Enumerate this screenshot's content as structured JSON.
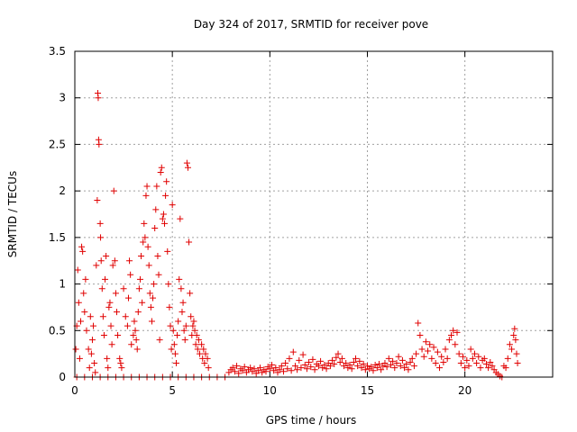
{
  "chart_data": {
    "type": "scatter",
    "title": "Day 324 of 2017, SRMTID for receiver pove",
    "xlabel": "GPS time / hours",
    "ylabel": "SRMTID / TECUs",
    "xlim": [
      0,
      24.5
    ],
    "ylim": [
      0,
      3.5
    ],
    "x_ticks": [
      0,
      5,
      10,
      15,
      20
    ],
    "y_ticks": [
      0,
      0.5,
      1,
      1.5,
      2,
      2.5,
      3,
      3.5
    ],
    "x_tick_labels": [
      "0",
      "5",
      "10",
      "15",
      "20"
    ],
    "y_tick_labels": [
      "0",
      "0.5",
      "1",
      "1.5",
      "2",
      "2.5",
      "3",
      "3.5"
    ],
    "grid": true,
    "marker": "+",
    "series": [
      {
        "name": "SRMTID",
        "color": "#e00000",
        "points": [
          [
            0.05,
            0.3
          ],
          [
            0.1,
            0.55
          ],
          [
            0.15,
            1.15
          ],
          [
            0.2,
            0.8
          ],
          [
            0.25,
            0.2
          ],
          [
            0.3,
            0.6
          ],
          [
            0.35,
            1.4
          ],
          [
            0.4,
            1.35
          ],
          [
            0.45,
            0.9
          ],
          [
            0.5,
            0.7
          ],
          [
            0.55,
            1.05
          ],
          [
            0.6,
            0.5
          ],
          [
            0.7,
            0.3
          ],
          [
            0.75,
            0.1
          ],
          [
            0.8,
            0.65
          ],
          [
            0.85,
            0.25
          ],
          [
            0.9,
            0.4
          ],
          [
            0.95,
            0.55
          ],
          [
            1.0,
            0.15
          ],
          [
            1.05,
            0.05
          ],
          [
            1.1,
            1.2
          ],
          [
            1.15,
            1.9
          ],
          [
            1.18,
            3.05
          ],
          [
            1.2,
            3.0
          ],
          [
            1.22,
            2.55
          ],
          [
            1.24,
            2.5
          ],
          [
            1.3,
            1.65
          ],
          [
            1.32,
            1.5
          ],
          [
            1.35,
            1.25
          ],
          [
            1.4,
            0.95
          ],
          [
            1.45,
            0.65
          ],
          [
            1.5,
            0.45
          ],
          [
            1.55,
            1.05
          ],
          [
            1.6,
            1.3
          ],
          [
            1.65,
            0.2
          ],
          [
            1.7,
            0.1
          ],
          [
            1.75,
            0.75
          ],
          [
            1.8,
            0.8
          ],
          [
            1.85,
            0.55
          ],
          [
            1.9,
            0.35
          ],
          [
            1.95,
            1.2
          ],
          [
            2.0,
            2.0
          ],
          [
            2.05,
            1.25
          ],
          [
            2.1,
            0.9
          ],
          [
            2.15,
            0.7
          ],
          [
            2.2,
            0.45
          ],
          [
            2.3,
            0.2
          ],
          [
            2.35,
            0.15
          ],
          [
            2.4,
            0.1
          ],
          [
            2.5,
            0.95
          ],
          [
            2.6,
            0.65
          ],
          [
            2.7,
            0.55
          ],
          [
            2.75,
            0.85
          ],
          [
            2.8,
            1.25
          ],
          [
            2.85,
            1.1
          ],
          [
            2.9,
            0.35
          ],
          [
            3.0,
            0.45
          ],
          [
            3.05,
            0.6
          ],
          [
            3.1,
            0.5
          ],
          [
            3.15,
            0.4
          ],
          [
            3.2,
            0.3
          ],
          [
            3.25,
            0.7
          ],
          [
            3.3,
            0.95
          ],
          [
            3.35,
            1.05
          ],
          [
            3.4,
            1.3
          ],
          [
            3.45,
            0.8
          ],
          [
            3.5,
            1.45
          ],
          [
            3.55,
            1.65
          ],
          [
            3.6,
            1.5
          ],
          [
            3.65,
            1.95
          ],
          [
            3.7,
            2.05
          ],
          [
            3.75,
            1.4
          ],
          [
            3.8,
            1.2
          ],
          [
            3.85,
            0.9
          ],
          [
            3.9,
            0.75
          ],
          [
            3.95,
            0.6
          ],
          [
            4.0,
            0.85
          ],
          [
            4.05,
            1.0
          ],
          [
            4.1,
            1.6
          ],
          [
            4.15,
            1.8
          ],
          [
            4.2,
            2.05
          ],
          [
            4.25,
            1.3
          ],
          [
            4.3,
            1.1
          ],
          [
            4.35,
            0.4
          ],
          [
            4.4,
            2.2
          ],
          [
            4.45,
            2.25
          ],
          [
            4.5,
            1.7
          ],
          [
            4.55,
            1.75
          ],
          [
            4.6,
            1.65
          ],
          [
            4.65,
            1.95
          ],
          [
            4.7,
            2.1
          ],
          [
            4.75,
            1.35
          ],
          [
            4.8,
            1.0
          ],
          [
            4.85,
            0.75
          ],
          [
            4.9,
            0.55
          ],
          [
            4.95,
            0.3
          ],
          [
            5.0,
            1.85
          ],
          [
            5.05,
            0.5
          ],
          [
            5.1,
            0.35
          ],
          [
            5.15,
            0.25
          ],
          [
            5.2,
            0.15
          ],
          [
            5.25,
            0.45
          ],
          [
            5.3,
            0.6
          ],
          [
            5.35,
            1.05
          ],
          [
            5.4,
            1.7
          ],
          [
            5.45,
            0.95
          ],
          [
            5.5,
            0.7
          ],
          [
            5.55,
            0.8
          ],
          [
            5.6,
            0.5
          ],
          [
            5.65,
            0.4
          ],
          [
            5.7,
            0.55
          ],
          [
            5.75,
            2.3
          ],
          [
            5.8,
            2.25
          ],
          [
            5.85,
            1.45
          ],
          [
            5.9,
            0.9
          ],
          [
            5.95,
            0.65
          ],
          [
            6.0,
            0.45
          ],
          [
            6.05,
            0.55
          ],
          [
            6.1,
            0.6
          ],
          [
            6.15,
            0.5
          ],
          [
            6.2,
            0.35
          ],
          [
            6.25,
            0.45
          ],
          [
            6.3,
            0.3
          ],
          [
            6.35,
            0.4
          ],
          [
            6.4,
            0.25
          ],
          [
            6.5,
            0.35
          ],
          [
            6.55,
            0.2
          ],
          [
            6.6,
            0.3
          ],
          [
            6.65,
            0.15
          ],
          [
            6.7,
            0.25
          ],
          [
            6.8,
            0.2
          ],
          [
            6.85,
            0.1
          ],
          [
            0.1,
            0
          ],
          [
            0.5,
            0
          ],
          [
            0.9,
            0
          ],
          [
            1.3,
            0
          ],
          [
            1.7,
            0
          ],
          [
            2.1,
            0
          ],
          [
            2.5,
            0
          ],
          [
            2.9,
            0
          ],
          [
            3.3,
            0
          ],
          [
            3.7,
            0
          ],
          [
            4.1,
            0
          ],
          [
            4.5,
            0
          ],
          [
            4.9,
            0
          ],
          [
            5.3,
            0
          ],
          [
            5.7,
            0
          ],
          [
            6.1,
            0
          ],
          [
            6.5,
            0
          ],
          [
            6.9,
            0
          ],
          [
            7.3,
            0
          ],
          [
            7.7,
            0
          ],
          [
            7.9,
            0.05
          ],
          [
            8.0,
            0.08
          ],
          [
            8.1,
            0.1
          ],
          [
            8.2,
            0.06
          ],
          [
            8.3,
            0.12
          ],
          [
            8.4,
            0.04
          ],
          [
            8.5,
            0.09
          ],
          [
            8.6,
            0.07
          ],
          [
            8.7,
            0.11
          ],
          [
            8.8,
            0.05
          ],
          [
            8.9,
            0.08
          ],
          [
            9.0,
            0.1
          ],
          [
            9.1,
            0.06
          ],
          [
            9.2,
            0.09
          ],
          [
            9.3,
            0.04
          ],
          [
            9.4,
            0.07
          ],
          [
            9.5,
            0.1
          ],
          [
            9.6,
            0.05
          ],
          [
            9.7,
            0.08
          ],
          [
            9.8,
            0.06
          ],
          [
            9.9,
            0.11
          ],
          [
            10.0,
            0.09
          ],
          [
            10.1,
            0.13
          ],
          [
            10.2,
            0.07
          ],
          [
            10.3,
            0.1
          ],
          [
            10.4,
            0.05
          ],
          [
            10.5,
            0.08
          ],
          [
            10.6,
            0.12
          ],
          [
            10.7,
            0.06
          ],
          [
            10.8,
            0.15
          ],
          [
            10.9,
            0.09
          ],
          [
            11.0,
            0.2
          ],
          [
            11.1,
            0.07
          ],
          [
            11.2,
            0.27
          ],
          [
            11.3,
            0.12
          ],
          [
            11.4,
            0.08
          ],
          [
            11.5,
            0.18
          ],
          [
            11.6,
            0.1
          ],
          [
            11.7,
            0.24
          ],
          [
            11.8,
            0.13
          ],
          [
            11.9,
            0.09
          ],
          [
            12.0,
            0.16
          ],
          [
            12.1,
            0.11
          ],
          [
            12.2,
            0.19
          ],
          [
            12.3,
            0.08
          ],
          [
            12.4,
            0.14
          ],
          [
            12.5,
            0.12
          ],
          [
            12.6,
            0.17
          ],
          [
            12.7,
            0.1
          ],
          [
            12.8,
            0.13
          ],
          [
            12.9,
            0.09
          ],
          [
            13.0,
            0.15
          ],
          [
            13.1,
            0.12
          ],
          [
            13.2,
            0.18
          ],
          [
            13.3,
            0.14
          ],
          [
            13.4,
            0.21
          ],
          [
            13.5,
            0.25
          ],
          [
            13.6,
            0.16
          ],
          [
            13.7,
            0.2
          ],
          [
            13.8,
            0.12
          ],
          [
            13.9,
            0.15
          ],
          [
            14.0,
            0.1
          ],
          [
            14.1,
            0.13
          ],
          [
            14.2,
            0.09
          ],
          [
            14.3,
            0.16
          ],
          [
            14.4,
            0.2
          ],
          [
            14.5,
            0.12
          ],
          [
            14.6,
            0.17
          ],
          [
            14.7,
            0.1
          ],
          [
            14.8,
            0.14
          ],
          [
            14.9,
            0.08
          ],
          [
            15.0,
            0.12
          ],
          [
            15.1,
            0.09
          ],
          [
            15.2,
            0.11
          ],
          [
            15.3,
            0.07
          ],
          [
            15.4,
            0.13
          ],
          [
            15.5,
            0.1
          ],
          [
            15.6,
            0.14
          ],
          [
            15.7,
            0.08
          ],
          [
            15.8,
            0.12
          ],
          [
            15.9,
            0.15
          ],
          [
            16.0,
            0.11
          ],
          [
            16.1,
            0.2
          ],
          [
            16.2,
            0.13
          ],
          [
            16.3,
            0.17
          ],
          [
            16.4,
            0.1
          ],
          [
            16.5,
            0.15
          ],
          [
            16.6,
            0.22
          ],
          [
            16.7,
            0.12
          ],
          [
            16.8,
            0.18
          ],
          [
            16.9,
            0.1
          ],
          [
            17.0,
            0.14
          ],
          [
            17.1,
            0.08
          ],
          [
            17.2,
            0.16
          ],
          [
            17.3,
            0.2
          ],
          [
            17.4,
            0.12
          ],
          [
            17.5,
            0.25
          ],
          [
            17.6,
            0.58
          ],
          [
            17.7,
            0.45
          ],
          [
            17.8,
            0.3
          ],
          [
            17.9,
            0.22
          ],
          [
            18.0,
            0.38
          ],
          [
            18.1,
            0.28
          ],
          [
            18.2,
            0.35
          ],
          [
            18.3,
            0.2
          ],
          [
            18.4,
            0.32
          ],
          [
            18.5,
            0.15
          ],
          [
            18.6,
            0.27
          ],
          [
            18.7,
            0.1
          ],
          [
            18.8,
            0.22
          ],
          [
            18.9,
            0.16
          ],
          [
            19.0,
            0.3
          ],
          [
            19.1,
            0.2
          ],
          [
            19.2,
            0.4
          ],
          [
            19.3,
            0.45
          ],
          [
            19.4,
            0.5
          ],
          [
            19.5,
            0.35
          ],
          [
            19.6,
            0.48
          ],
          [
            19.7,
            0.25
          ],
          [
            19.8,
            0.15
          ],
          [
            19.9,
            0.22
          ],
          [
            20.0,
            0.1
          ],
          [
            20.1,
            0.18
          ],
          [
            20.2,
            0.12
          ],
          [
            20.3,
            0.3
          ],
          [
            20.4,
            0.2
          ],
          [
            20.5,
            0.25
          ],
          [
            20.6,
            0.15
          ],
          [
            20.7,
            0.22
          ],
          [
            20.8,
            0.1
          ],
          [
            20.9,
            0.18
          ],
          [
            21.0,
            0.2
          ],
          [
            21.1,
            0.14
          ],
          [
            21.2,
            0.1
          ],
          [
            21.3,
            0.16
          ],
          [
            21.4,
            0.12
          ],
          [
            21.5,
            0.08
          ],
          [
            21.6,
            0.05
          ],
          [
            21.7,
            0.03
          ],
          [
            21.8,
            0.01
          ],
          [
            21.9,
            0.0
          ],
          [
            22.0,
            0.12
          ],
          [
            22.1,
            0.1
          ],
          [
            22.2,
            0.2
          ],
          [
            22.3,
            0.35
          ],
          [
            22.4,
            0.3
          ],
          [
            22.5,
            0.45
          ],
          [
            22.55,
            0.52
          ],
          [
            22.6,
            0.4
          ],
          [
            22.65,
            0.25
          ],
          [
            22.7,
            0.15
          ]
        ]
      }
    ]
  }
}
